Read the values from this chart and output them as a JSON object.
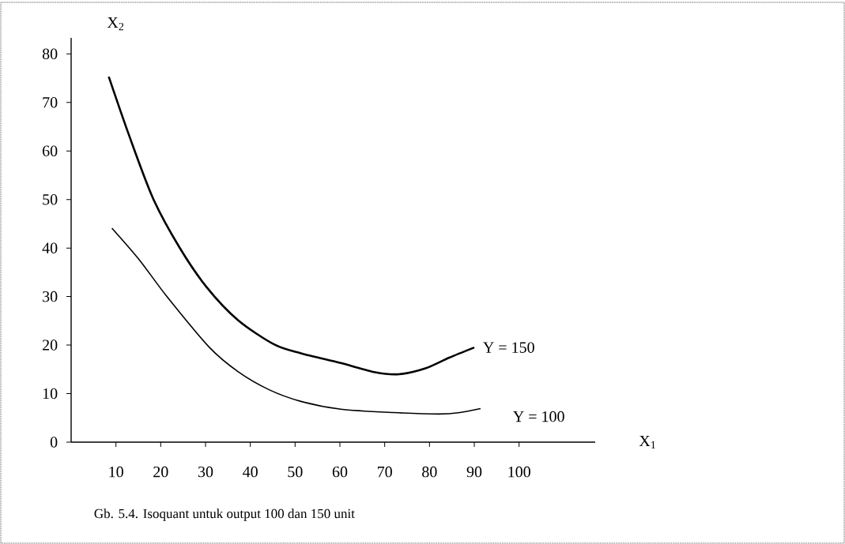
{
  "chart_data": {
    "type": "line",
    "xlabel": "X$_{1}$",
    "ylabel": "X$_{2}$",
    "xlim": [
      0,
      117
    ],
    "ylim": [
      0,
      83.3
    ],
    "xticks": [
      10,
      20,
      30,
      40,
      50,
      60,
      70,
      80,
      90,
      100
    ],
    "yticks": [
      0,
      10,
      20,
      30,
      40,
      50,
      60,
      70,
      80
    ],
    "series": [
      {
        "name": "Y = 150",
        "color": "#000000",
        "x": [
          8.4,
          12.9,
          18.3,
          24.2,
          30.2,
          37.3,
          45.4,
          51.3,
          60.2,
          67.9,
          73.2,
          79.1,
          84.4,
          90.0
        ],
        "values": [
          75.3,
          63.3,
          50.2,
          40.1,
          32.0,
          25.1,
          20.1,
          18.3,
          16.3,
          14.4,
          14.0,
          15.2,
          17.4,
          19.5
        ]
      },
      {
        "name": "Y = 100",
        "color": "#000000",
        "x": [
          9.1,
          15.2,
          21.3,
          30.9,
          37.3,
          44.2,
          51.3,
          60.2,
          72.0,
          82.0,
          86.8,
          91.4
        ],
        "values": [
          44.1,
          37.6,
          30.1,
          19.5,
          14.5,
          10.8,
          8.4,
          6.8,
          6.1,
          5.8,
          6.1,
          6.9
        ]
      }
    ],
    "annotations": [
      "Gb. 5.4. Isoquant untuk output 100 dan 150 unit"
    ],
    "marker": "none",
    "line_style": "solid",
    "grid": false
  }
}
